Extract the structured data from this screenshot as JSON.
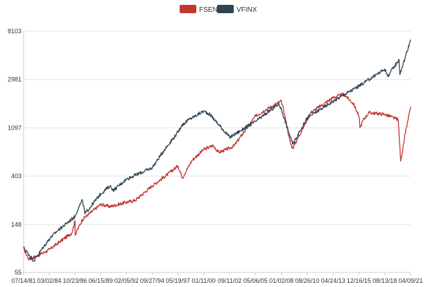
{
  "chart_data": {
    "type": "line",
    "title": "",
    "xlabel": "",
    "ylabel": "",
    "y_scale": "log",
    "ylim": [
      55,
      8103
    ],
    "y_ticks": [
      55,
      148,
      403,
      1097,
      2981,
      8103
    ],
    "x_ticks": [
      "07/14/81",
      "03/02/84",
      "10/23/86",
      "06/15/89",
      "02/05/92",
      "09/27/94",
      "05/19/97",
      "01/11/00",
      "09/11/02",
      "05/06/05",
      "01/02/08",
      "08/26/10",
      "04/24/13",
      "12/16/15",
      "08/13/18",
      "04/09/21"
    ],
    "legend_position": "top-center",
    "grid": "horizontal",
    "series": [
      {
        "name": "FSENX",
        "color": "#c23531",
        "x": [
          "07/14/81",
          "02/1982",
          "01/1983",
          "03/02/84",
          "01/1985",
          "07/1986",
          "10/23/86",
          "11/1986",
          "08/1987",
          "06/15/89",
          "06/1990",
          "02/05/92",
          "01/1993",
          "09/27/94",
          "05/1996",
          "05/19/97",
          "11/1997",
          "11/1998",
          "01/11/00",
          "01/2001",
          "08/2001",
          "09/11/02",
          "03/2003",
          "05/06/05",
          "06/2006",
          "01/02/08",
          "05/2008",
          "12/2008",
          "03/2009",
          "08/26/10",
          "01/2011",
          "04/24/13",
          "06/2014",
          "06/2015",
          "12/16/15",
          "02/2016",
          "06/2016",
          "01/2017",
          "08/13/18",
          "01/2020",
          "04/2020",
          "10/2020",
          "04/09/21"
        ],
        "values": [
          90,
          72,
          78,
          88,
          100,
          125,
          160,
          120,
          165,
          225,
          215,
          235,
          245,
          330,
          420,
          500,
          390,
          560,
          700,
          760,
          660,
          720,
          760,
          1400,
          1600,
          1900,
          1450,
          800,
          720,
          1300,
          1500,
          2050,
          2200,
          1800,
          1400,
          1100,
          1300,
          1500,
          1450,
          1300,
          550,
          1000,
          1700
        ]
      },
      {
        "name": "VFINX",
        "color": "#2f4554",
        "x": [
          "07/14/81",
          "08/1982",
          "03/02/84",
          "01/1985",
          "10/23/86",
          "03/1987",
          "08/1987",
          "11/1987",
          "06/15/89",
          "06/1990",
          "10/1990",
          "02/05/92",
          "09/27/94",
          "01/1996",
          "05/19/97",
          "10/1997",
          "07/1998",
          "01/11/00",
          "09/2000",
          "09/11/02",
          "05/06/05",
          "10/2007",
          "01/02/08",
          "03/2009",
          "08/26/10",
          "04/24/13",
          "12/16/15",
          "08/13/18",
          "12/2018",
          "02/2020",
          "03/2020",
          "04/09/21"
        ],
        "values": [
          92,
          70,
          110,
          130,
          175,
          210,
          245,
          185,
          280,
          330,
          300,
          380,
          480,
          700,
          1000,
          1150,
          1300,
          1550,
          1450,
          900,
          1250,
          1800,
          1600,
          780,
          1350,
          1900,
          2600,
          3700,
          3200,
          4500,
          3300,
          6800
        ]
      }
    ]
  }
}
